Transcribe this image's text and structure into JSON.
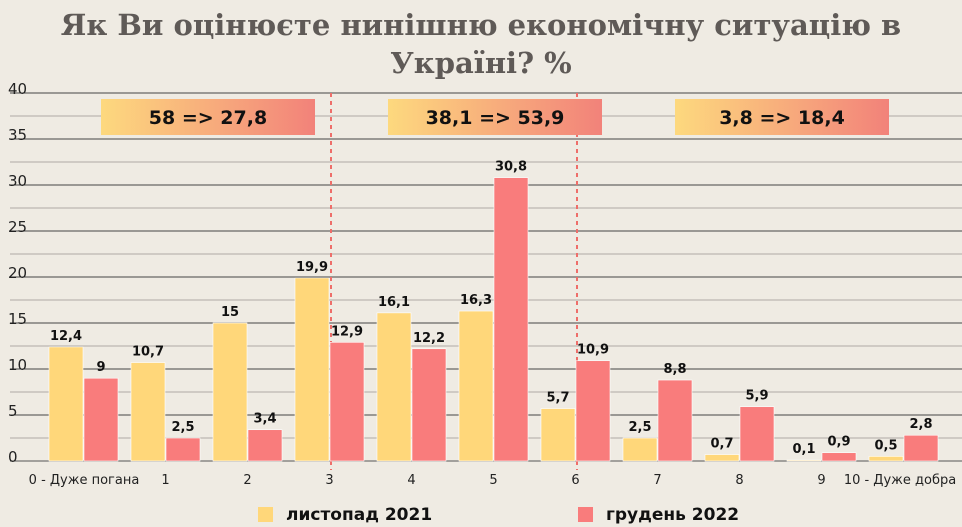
{
  "chart_data": {
    "type": "bar",
    "title_lines": [
      "Як Ви оцінюєте нинішню економічну ситуацію в",
      "Україні? %"
    ],
    "categories": [
      "0 - Дуже погана",
      "1",
      "2",
      "3",
      "4",
      "5",
      "6",
      "7",
      "8",
      "9",
      "10 - Дуже добра"
    ],
    "series": [
      {
        "name": "листопад 2021",
        "color": "#ffd77a",
        "values": [
          12.4,
          10.7,
          15,
          19.9,
          16.1,
          16.3,
          5.7,
          2.5,
          0.7,
          0.1,
          0.5
        ],
        "labels": [
          "12,4",
          "10,7",
          "15",
          "19,9",
          "16,1",
          "16,3",
          "5,7",
          "2,5",
          "0,7",
          "0,1",
          "0,5"
        ]
      },
      {
        "name": "грудень 2022",
        "color": "#f97c7c",
        "values": [
          9,
          2.5,
          3.4,
          12.9,
          12.2,
          30.8,
          10.9,
          8.8,
          5.9,
          0.9,
          2.8
        ],
        "labels": [
          "9",
          "2,5",
          "3,4",
          "12,9",
          "12,2",
          "30,8",
          "10,9",
          "8,8",
          "5,9",
          "0,9",
          "2,8"
        ]
      }
    ],
    "ylim": [
      0,
      40
    ],
    "yticks": [
      0,
      5,
      10,
      15,
      20,
      25,
      30,
      35,
      40
    ],
    "grid": true,
    "legend_position": "bottom",
    "annotations": [
      "58 => 27,8",
      "38,1 => 53,9",
      "3,8 => 18,4"
    ]
  }
}
